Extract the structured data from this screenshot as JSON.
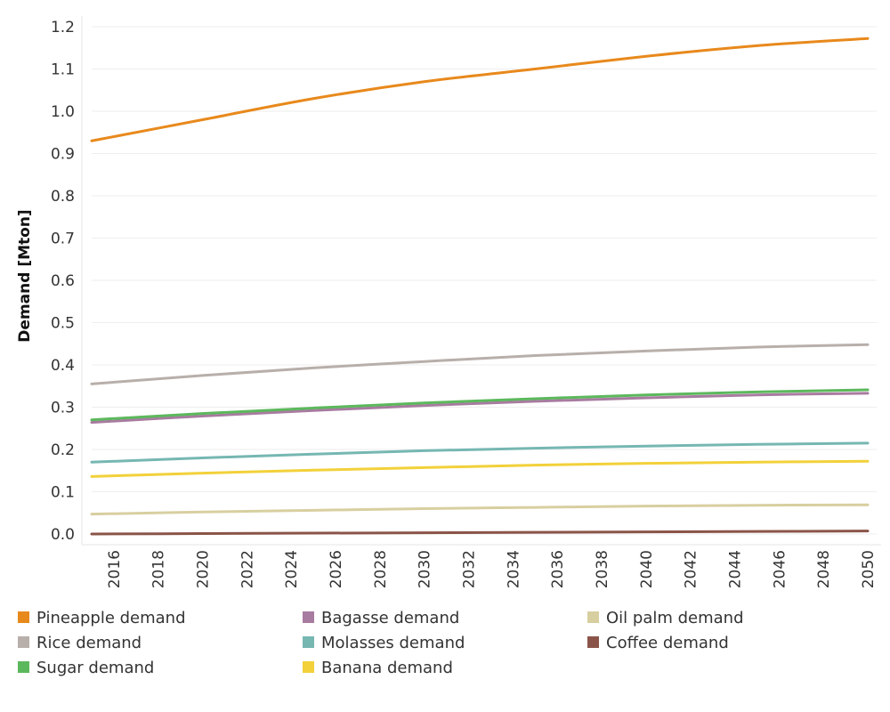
{
  "chart_data": {
    "type": "line",
    "ylabel": "Demand [Mton]",
    "xlabel": "",
    "xlim": [
      2015,
      2050
    ],
    "ylim": [
      0,
      1.2
    ],
    "x_ticks": [
      "2016",
      "2018",
      "2020",
      "2022",
      "2024",
      "2026",
      "2028",
      "2030",
      "2032",
      "2034",
      "2036",
      "2038",
      "2040",
      "2042",
      "2044",
      "2046",
      "2048",
      "2050"
    ],
    "y_ticks": [
      "0.0",
      "0.1",
      "0.2",
      "0.3",
      "0.4",
      "0.5",
      "0.6",
      "0.7",
      "0.8",
      "0.9",
      "1.0",
      "1.1",
      "1.2"
    ],
    "grid": true,
    "legend_position": "bottom",
    "x": [
      2015,
      2020,
      2025,
      2030,
      2035,
      2040,
      2045,
      2050
    ],
    "series": [
      {
        "name": "Pineapple demand",
        "color": "#E8891C",
        "values": [
          0.93,
          0.98,
          1.03,
          1.07,
          1.1,
          1.13,
          1.155,
          1.172
        ]
      },
      {
        "name": "Rice demand",
        "color": "#B8AFAA",
        "values": [
          0.355,
          0.375,
          0.393,
          0.408,
          0.422,
          0.433,
          0.442,
          0.448
        ]
      },
      {
        "name": "Sugar demand",
        "color": "#5CB85C",
        "values": [
          0.27,
          0.285,
          0.298,
          0.31,
          0.32,
          0.329,
          0.336,
          0.341
        ]
      },
      {
        "name": "Bagasse demand",
        "color": "#A87BA0",
        "values": [
          0.264,
          0.279,
          0.292,
          0.304,
          0.314,
          0.322,
          0.329,
          0.333
        ]
      },
      {
        "name": "Molasses demand",
        "color": "#76B7B2",
        "values": [
          0.17,
          0.18,
          0.189,
          0.197,
          0.203,
          0.208,
          0.212,
          0.215
        ]
      },
      {
        "name": "Banana demand",
        "color": "#F2D13A",
        "values": [
          0.136,
          0.144,
          0.151,
          0.157,
          0.163,
          0.167,
          0.17,
          0.172
        ]
      },
      {
        "name": "Oil palm demand",
        "color": "#D8CFA0",
        "values": [
          0.047,
          0.052,
          0.056,
          0.06,
          0.063,
          0.066,
          0.068,
          0.069
        ]
      },
      {
        "name": "Coffee demand",
        "color": "#8B5448",
        "values": [
          0.0,
          0.001,
          0.002,
          0.003,
          0.004,
          0.005,
          0.006,
          0.007
        ]
      }
    ],
    "legend_order": [
      "Pineapple demand",
      "Bagasse demand",
      "Oil palm demand",
      "Rice demand",
      "Molasses demand",
      "Coffee demand",
      "Sugar demand",
      "Banana demand"
    ]
  }
}
